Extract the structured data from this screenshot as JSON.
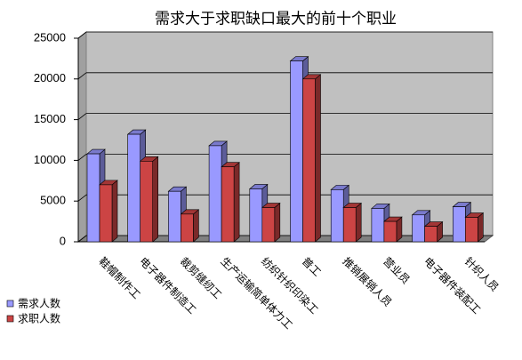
{
  "chart_data": {
    "type": "bar3d",
    "title": "需求大于求职缺口最大的前十个职业",
    "categories": [
      "鞋帽制作工",
      "电子器件制造工",
      "裁剪缝纫工",
      "生产运输简单体力工",
      "纺织针织印染工",
      "普工",
      "推销展销人员",
      "营业员",
      "电子器件装配工",
      "针织人员"
    ],
    "series": [
      {
        "name": "需求人数",
        "color": "#9999ff",
        "values": [
          10800,
          13200,
          6200,
          11800,
          6500,
          22200,
          6400,
          4100,
          3300,
          4300
        ]
      },
      {
        "name": "求职人数",
        "color": "#cc4444",
        "values": [
          7000,
          9900,
          3400,
          9200,
          4200,
          20000,
          4200,
          2500,
          1900,
          3000
        ]
      }
    ],
    "ylim": [
      0,
      25000
    ],
    "yticks": [
      0,
      5000,
      10000,
      15000,
      20000,
      25000
    ],
    "grid": true,
    "legend": "bottom-left"
  }
}
